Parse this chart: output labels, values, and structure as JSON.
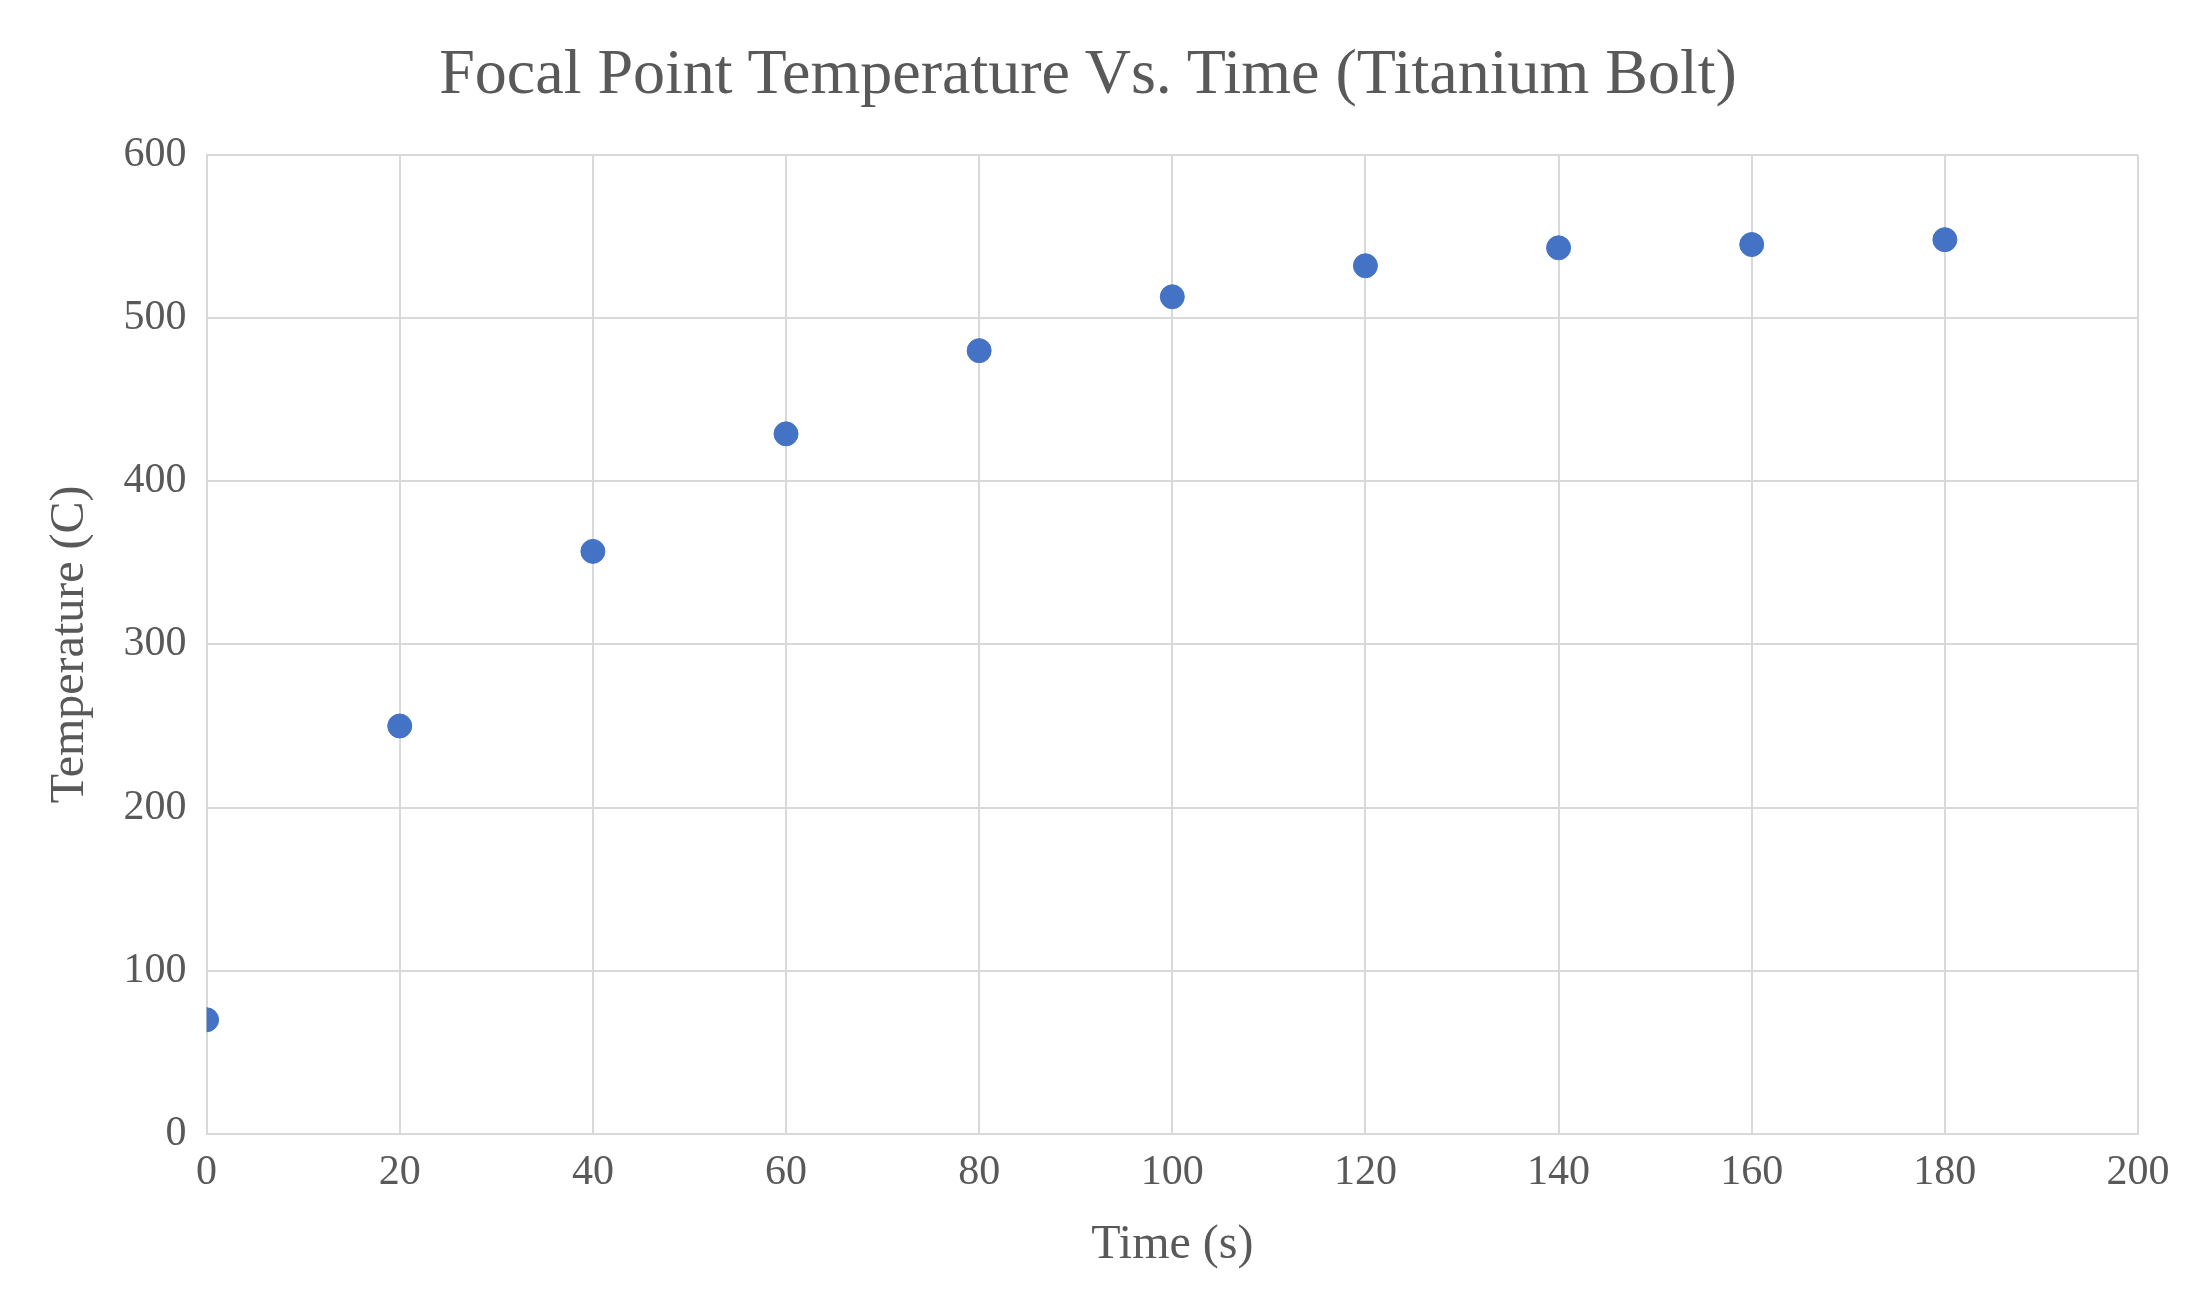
{
  "chart_data": {
    "type": "scatter",
    "title": "Focal Point Temperature Vs. Time (Titanium Bolt)",
    "xlabel": "Time (s)",
    "ylabel": "Temperature (C)",
    "x": [
      0,
      20,
      40,
      60,
      80,
      100,
      120,
      140,
      160,
      180
    ],
    "series": [
      {
        "color": "#4472c4",
        "values": [
          70,
          250,
          357,
          429,
          480,
          513,
          532,
          543,
          545,
          548
        ]
      }
    ],
    "xlim": [
      0,
      200
    ],
    "xticks": [
      0,
      20,
      40,
      60,
      80,
      100,
      120,
      140,
      160,
      180,
      200
    ],
    "ylim": [
      0,
      600
    ],
    "yticks": [
      0,
      100,
      200,
      300,
      400,
      500,
      600
    ],
    "grid": true,
    "legend": false,
    "marker": "circle"
  }
}
